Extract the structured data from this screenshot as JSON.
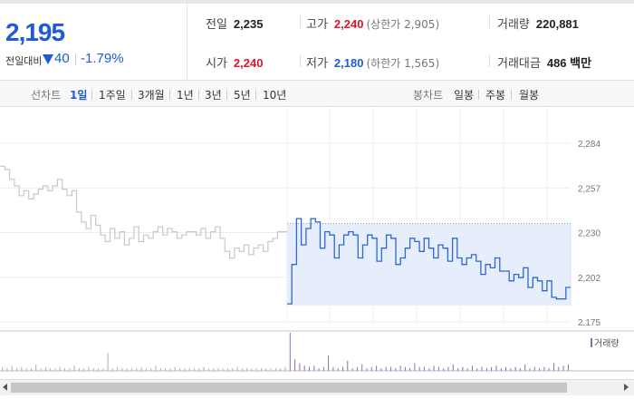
{
  "quote": {
    "current_price": "2,195",
    "diff_label": "전일대비",
    "diff_value": "40",
    "diff_rate": "-1.79%",
    "prev_close_label": "전일",
    "prev_close": "2,235",
    "open_label": "시가",
    "open": "2,240",
    "high_label": "고가",
    "high": "2,240",
    "upper_limit": "(상한가 2,905)",
    "low_label": "저가",
    "low": "2,180",
    "lower_limit": "(하한가 1,565)",
    "volume_label": "거래량",
    "volume": "220,881",
    "amount_label": "거래대금",
    "amount": "486 백만"
  },
  "toolbar": {
    "line_chart_label": "선차트",
    "periods": [
      "1일",
      "1주일",
      "3개월",
      "1년",
      "3년",
      "5년",
      "10년"
    ],
    "active_period": "1일",
    "candle_label": "봉차트",
    "candles": [
      "일봉",
      "주봉",
      "월봉"
    ]
  },
  "colors": {
    "accent_blue": "#1f5bd4",
    "up_red": "#e0142a",
    "prev_day_line": "#c8c8c8",
    "today_line": "#2e67d8",
    "fill": "#e6eefb"
  },
  "chart_data": {
    "type": "line",
    "y_ticks": [
      "2,284",
      "2,257",
      "2,230",
      "2,202",
      "2,175"
    ],
    "ylim": [
      2175,
      2284
    ],
    "reference_line": 2235,
    "volume_legend": "거래량",
    "series": [
      {
        "values": [
          2270,
          2268,
          2262,
          2258,
          2252,
          2255,
          2250,
          2253,
          2256,
          2258,
          2255,
          2258,
          2262,
          2256,
          2252,
          2255,
          2242,
          2236,
          2232,
          2240,
          2234,
          2228,
          2224,
          2232,
          2226,
          2230,
          2222,
          2226,
          2233,
          2224,
          2228,
          2226,
          2230,
          2233,
          2228,
          2232,
          2230,
          2226,
          2228,
          2230,
          2230,
          2228,
          2232,
          2226,
          2230,
          2233,
          2226,
          2218,
          2214,
          2220,
          2218,
          2222,
          2216,
          2220,
          2222,
          2218,
          2224,
          2226,
          2230,
          2230
        ]
      },
      {
        "values": [
          2186,
          2210,
          2238,
          2222,
          2232,
          2238,
          2236,
          2220,
          2230,
          2228,
          2214,
          2222,
          2228,
          2230,
          2228,
          2214,
          2222,
          2228,
          2226,
          2212,
          2220,
          2228,
          2226,
          2210,
          2214,
          2220,
          2226,
          2224,
          2218,
          2226,
          2220,
          2214,
          2222,
          2220,
          2212,
          2226,
          2214,
          2210,
          2214,
          2216,
          2212,
          2204,
          2210,
          2208,
          2214,
          2206,
          2206,
          2200,
          2204,
          2202,
          2208,
          2196,
          2202,
          2200,
          2194,
          2200,
          2190,
          2189,
          2189,
          2196
        ]
      }
    ],
    "volume": [
      3,
      2,
      4,
      2,
      3,
      2,
      2,
      5,
      2,
      3,
      2,
      2,
      3,
      2,
      2,
      4,
      2,
      2,
      3,
      2,
      2,
      2,
      14,
      2,
      3,
      2,
      2,
      2,
      2,
      3,
      2,
      2,
      4,
      2,
      2,
      2,
      3,
      2,
      2,
      2,
      2,
      2,
      3,
      2,
      2,
      2,
      2,
      2,
      2,
      3,
      2,
      2,
      2,
      2,
      2,
      2,
      2,
      2,
      2,
      3,
      30,
      9,
      6,
      4,
      3,
      4,
      2,
      3,
      12,
      3,
      2,
      3,
      8,
      2,
      3,
      5,
      2,
      3,
      4,
      2,
      3,
      3,
      2,
      4,
      3,
      2,
      6,
      3,
      3,
      2,
      4,
      3,
      2,
      3,
      5,
      2,
      3,
      2,
      4,
      2,
      3,
      2,
      3,
      4,
      2,
      3,
      2,
      3,
      2,
      5,
      2,
      3,
      2,
      3,
      2,
      6,
      3,
      4,
      5
    ]
  }
}
